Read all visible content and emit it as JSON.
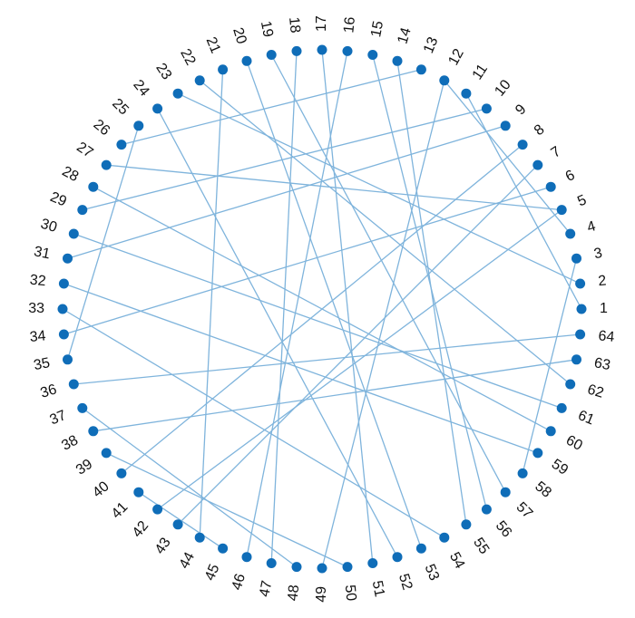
{
  "graph": {
    "node_count": 64,
    "labels": [
      "1",
      "2",
      "3",
      "4",
      "5",
      "6",
      "7",
      "8",
      "9",
      "10",
      "11",
      "12",
      "13",
      "14",
      "15",
      "16",
      "17",
      "18",
      "19",
      "20",
      "21",
      "22",
      "23",
      "24",
      "25",
      "26",
      "27",
      "28",
      "29",
      "30",
      "31",
      "32",
      "33",
      "34",
      "35",
      "36",
      "37",
      "38",
      "39",
      "40",
      "41",
      "42",
      "43",
      "44",
      "45",
      "46",
      "47",
      "48",
      "49",
      "50",
      "51",
      "52",
      "53",
      "54",
      "55",
      "56",
      "57",
      "58",
      "59",
      "60",
      "61",
      "62",
      "63",
      "64"
    ],
    "edges": [
      [
        1,
        11
      ],
      [
        2,
        23
      ],
      [
        3,
        58
      ],
      [
        4,
        12
      ],
      [
        5,
        27
      ],
      [
        6,
        34
      ],
      [
        7,
        43
      ],
      [
        8,
        40
      ],
      [
        9,
        31
      ],
      [
        10,
        29
      ],
      [
        12,
        49
      ],
      [
        13,
        26
      ],
      [
        14,
        55
      ],
      [
        15,
        56
      ],
      [
        16,
        46
      ],
      [
        17,
        51
      ],
      [
        18,
        47
      ],
      [
        19,
        57
      ],
      [
        20,
        53
      ],
      [
        21,
        44
      ],
      [
        22,
        62
      ],
      [
        24,
        52
      ],
      [
        25,
        35
      ],
      [
        28,
        60
      ],
      [
        30,
        61
      ],
      [
        32,
        59
      ],
      [
        33,
        54
      ],
      [
        36,
        64
      ],
      [
        37,
        48
      ],
      [
        38,
        63
      ],
      [
        39,
        50
      ],
      [
        41,
        45
      ],
      [
        42,
        5
      ]
    ],
    "node_color": "#0f6db8",
    "edge_color": "#7fb4dc",
    "label_color": "#111111"
  }
}
